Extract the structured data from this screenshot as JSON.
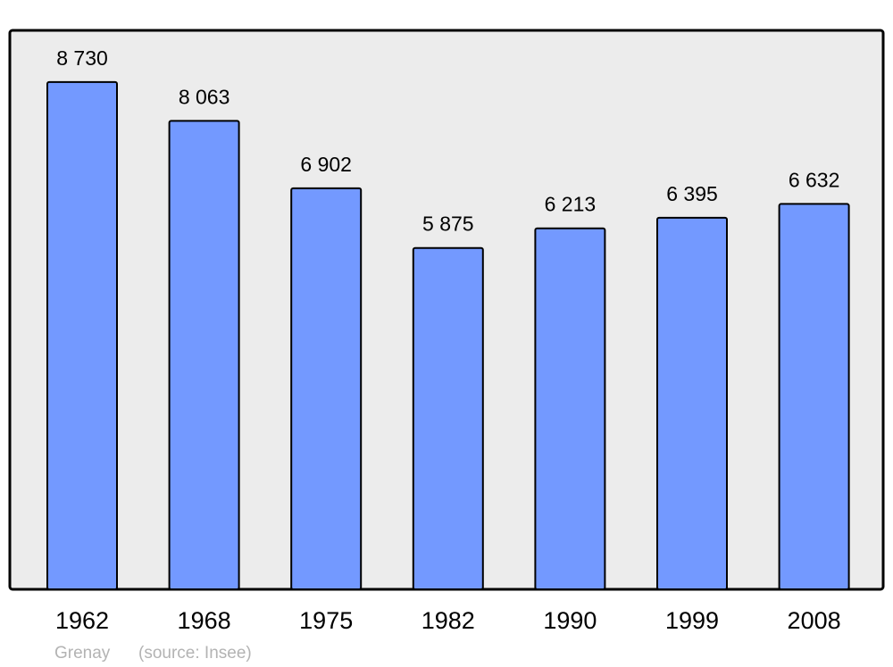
{
  "chart_data": {
    "type": "bar",
    "categories": [
      "1962",
      "1968",
      "1975",
      "1982",
      "1990",
      "1999",
      "2008"
    ],
    "values": [
      8730,
      8063,
      6902,
      5875,
      6213,
      6395,
      6632
    ],
    "data_labels": [
      "8 730",
      "8 063",
      "6 902",
      "5 875",
      "6 213",
      "6 395",
      "6 632"
    ],
    "ylim": [
      0,
      9620
    ],
    "grid": false,
    "title": "",
    "xlabel": "",
    "ylabel": ""
  },
  "footer": {
    "place": "Grenay",
    "source": "(source: Insee)"
  },
  "colors": {
    "bar": "#7399ff",
    "plot_background": "#ececec",
    "border": "#000000",
    "footer_text": "#b3b3b3"
  }
}
